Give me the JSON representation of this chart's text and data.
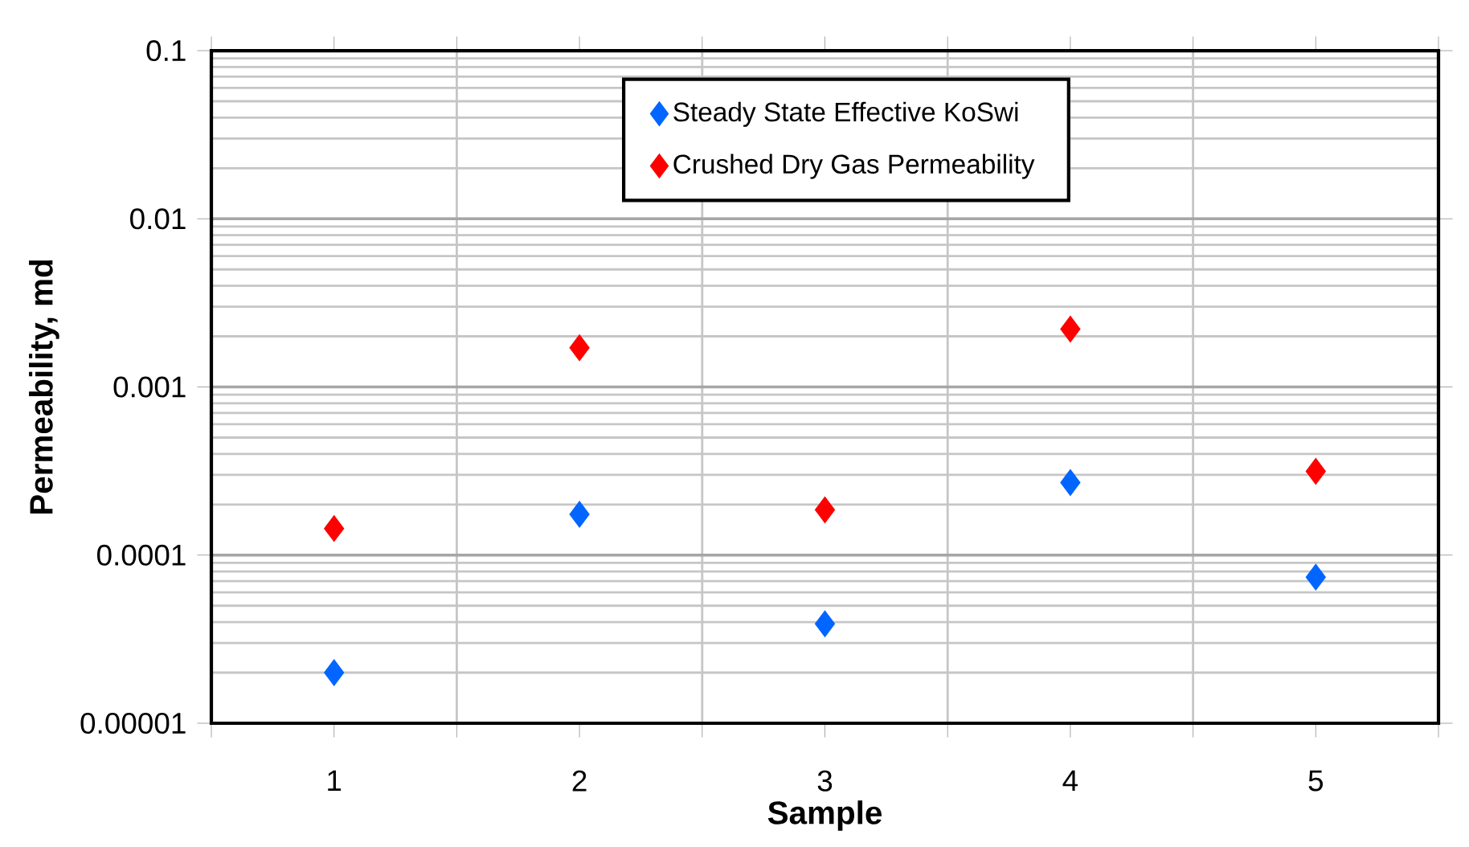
{
  "chart_data": {
    "type": "scatter",
    "xlabel": "Sample",
    "ylabel": "Permeability, md",
    "categories": [
      "1",
      "2",
      "3",
      "4",
      "5"
    ],
    "series": [
      {
        "name": "Steady State Effective  KoSwi",
        "color": "#0066ff",
        "values": [
          2e-05,
          0.000175,
          3.9e-05,
          0.00027,
          7.4e-05
        ]
      },
      {
        "name": "Crushed Dry Gas Permeability",
        "color": "#ff0000",
        "values": [
          0.000144,
          0.00171,
          0.000186,
          0.00221,
          0.000315
        ]
      }
    ],
    "log": "y",
    "ylim": [
      1e-05,
      0.1
    ],
    "yticks": [
      {
        "value": 1e-05,
        "label": "0.00001"
      },
      0.0001,
      0.001,
      0.01,
      0.1
    ],
    "grid": true,
    "legend": "top right",
    "marker": "diamond"
  }
}
